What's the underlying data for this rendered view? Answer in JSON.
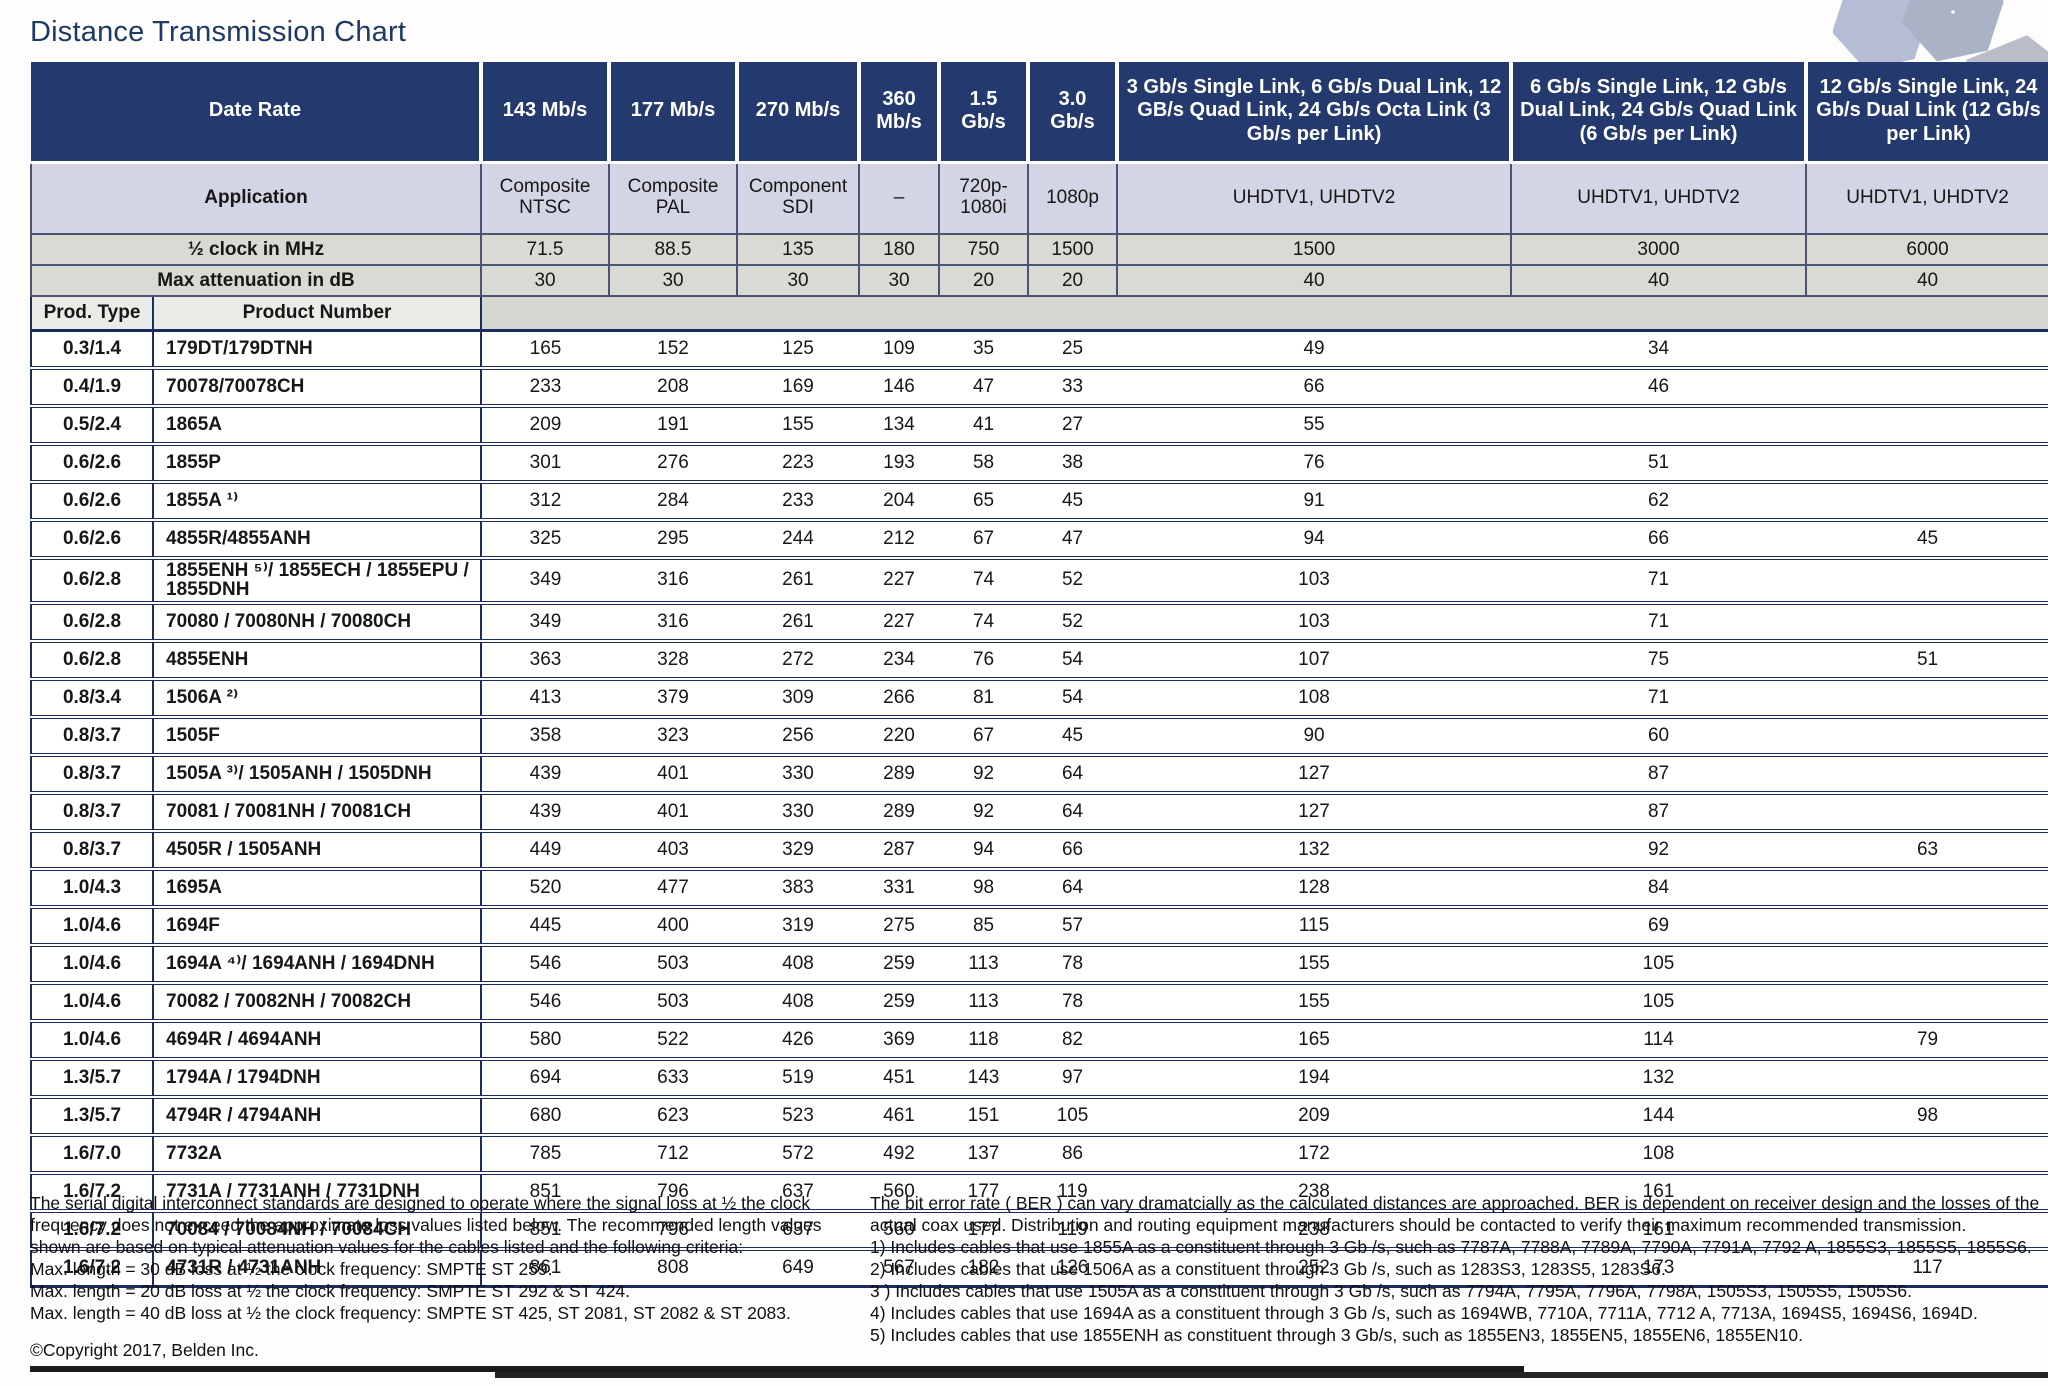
{
  "page": {
    "title": "Distance Transmission Chart"
  },
  "colors": {
    "header_navy": "#243a6e",
    "application_row_bg": "#d3d5e4",
    "spec_row_bg": "#d9dad3",
    "row_separator_navy": "#1d2c5e",
    "title_blue": "#1e3966",
    "hexagon_fill": "#b5bdd4"
  },
  "icons": {
    "decoration": "hexagon-pattern"
  },
  "table": {
    "data_rate_label": "Date Rate",
    "application_label": "Application",
    "half_clock_label": "½ clock in MHz",
    "max_atten_label": "Max attenuation in dB",
    "prod_type_label": "Prod. Type",
    "product_number_label": "Product Number",
    "columns": [
      {
        "data_rate": "143 Mb/s",
        "application": "Composite NTSC",
        "half_clock_mhz": "71.5",
        "max_attenuation_db": "30"
      },
      {
        "data_rate": "177 Mb/s",
        "application": "Composite PAL",
        "half_clock_mhz": "88.5",
        "max_attenuation_db": "30"
      },
      {
        "data_rate": "270 Mb/s",
        "application": "Component SDI",
        "half_clock_mhz": "135",
        "max_attenuation_db": "30"
      },
      {
        "data_rate": "360 Mb/s",
        "application": "–",
        "half_clock_mhz": "180",
        "max_attenuation_db": "30"
      },
      {
        "data_rate": "1.5 Gb/s",
        "application": "720p- 1080i",
        "half_clock_mhz": "750",
        "max_attenuation_db": "20"
      },
      {
        "data_rate": "3.0 Gb/s",
        "application": "1080p",
        "half_clock_mhz": "1500",
        "max_attenuation_db": "20"
      },
      {
        "data_rate": "3 Gb/s Single Link, 6 Gb/s Dual Link, 12 GB/s Quad Link, 24 Gb/s Octa Link (3 Gb/s per Link)",
        "application": "UHDTV1, UHDTV2",
        "half_clock_mhz": "1500",
        "max_attenuation_db": "40"
      },
      {
        "data_rate": "6 Gb/s Single Link, 12 Gb/s Dual Link, 24 Gb/s Quad Link (6 Gb/s per Link)",
        "application": "UHDTV1, UHDTV2",
        "half_clock_mhz": "3000",
        "max_attenuation_db": "40"
      },
      {
        "data_rate": "12 Gb/s Single Link, 24 Gb/s Dual Link (12 Gb/s per Link)",
        "application": "UHDTV1, UHDTV2",
        "half_clock_mhz": "6000",
        "max_attenuation_db": "40"
      }
    ],
    "rows": [
      {
        "prod_type": "0.3/1.4",
        "product_number": "179DT/179DTNH",
        "values": [
          "165",
          "152",
          "125",
          "109",
          "35",
          "25",
          "49",
          "34",
          ""
        ]
      },
      {
        "prod_type": "0.4/1.9",
        "product_number": "70078/70078CH",
        "values": [
          "233",
          "208",
          "169",
          "146",
          "47",
          "33",
          "66",
          "46",
          ""
        ]
      },
      {
        "prod_type": "0.5/2.4",
        "product_number": "1865A",
        "values": [
          "209",
          "191",
          "155",
          "134",
          "41",
          "27",
          "55",
          "",
          ""
        ]
      },
      {
        "prod_type": "0.6/2.6",
        "product_number": "1855P",
        "values": [
          "301",
          "276",
          "223",
          "193",
          "58",
          "38",
          "76",
          "51",
          ""
        ]
      },
      {
        "prod_type": "0.6/2.6",
        "product_number": "1855A ¹⁾",
        "values": [
          "312",
          "284",
          "233",
          "204",
          "65",
          "45",
          "91",
          "62",
          ""
        ]
      },
      {
        "prod_type": "0.6/2.6",
        "product_number": "4855R/4855ANH",
        "values": [
          "325",
          "295",
          "244",
          "212",
          "67",
          "47",
          "94",
          "66",
          "45"
        ]
      },
      {
        "prod_type": "0.6/2.8",
        "product_number": "1855ENH ⁵⁾/ 1855ECH / 1855EPU / 1855DNH",
        "values": [
          "349",
          "316",
          "261",
          "227",
          "74",
          "52",
          "103",
          "71",
          ""
        ]
      },
      {
        "prod_type": "0.6/2.8",
        "product_number": "70080 / 70080NH / 70080CH",
        "values": [
          "349",
          "316",
          "261",
          "227",
          "74",
          "52",
          "103",
          "71",
          ""
        ]
      },
      {
        "prod_type": "0.6/2.8",
        "product_number": "4855ENH",
        "values": [
          "363",
          "328",
          "272",
          "234",
          "76",
          "54",
          "107",
          "75",
          "51"
        ]
      },
      {
        "prod_type": "0.8/3.4",
        "product_number": "1506A ²⁾",
        "values": [
          "413",
          "379",
          "309",
          "266",
          "81",
          "54",
          "108",
          "71",
          ""
        ]
      },
      {
        "prod_type": "0.8/3.7",
        "product_number": "1505F",
        "values": [
          "358",
          "323",
          "256",
          "220",
          "67",
          "45",
          "90",
          "60",
          ""
        ]
      },
      {
        "prod_type": "0.8/3.7",
        "product_number": "1505A ³⁾/ 1505ANH / 1505DNH",
        "values": [
          "439",
          "401",
          "330",
          "289",
          "92",
          "64",
          "127",
          "87",
          ""
        ]
      },
      {
        "prod_type": "0.8/3.7",
        "product_number": "70081 / 70081NH / 70081CH",
        "values": [
          "439",
          "401",
          "330",
          "289",
          "92",
          "64",
          "127",
          "87",
          ""
        ]
      },
      {
        "prod_type": "0.8/3.7",
        "product_number": "4505R / 1505ANH",
        "values": [
          "449",
          "403",
          "329",
          "287",
          "94",
          "66",
          "132",
          "92",
          "63"
        ]
      },
      {
        "prod_type": "1.0/4.3",
        "product_number": "1695A",
        "values": [
          "520",
          "477",
          "383",
          "331",
          "98",
          "64",
          "128",
          "84",
          ""
        ]
      },
      {
        "prod_type": "1.0/4.6",
        "product_number": "1694F",
        "values": [
          "445",
          "400",
          "319",
          "275",
          "85",
          "57",
          "115",
          "69",
          ""
        ]
      },
      {
        "prod_type": "1.0/4.6",
        "product_number": "1694A ⁴⁾/ 1694ANH / 1694DNH",
        "values": [
          "546",
          "503",
          "408",
          "259",
          "113",
          "78",
          "155",
          "105",
          ""
        ]
      },
      {
        "prod_type": "1.0/4.6",
        "product_number": "70082 / 70082NH / 70082CH",
        "values": [
          "546",
          "503",
          "408",
          "259",
          "113",
          "78",
          "155",
          "105",
          ""
        ]
      },
      {
        "prod_type": "1.0/4.6",
        "product_number": "4694R / 4694ANH",
        "values": [
          "580",
          "522",
          "426",
          "369",
          "118",
          "82",
          "165",
          "114",
          "79"
        ]
      },
      {
        "prod_type": "1.3/5.7",
        "product_number": "1794A / 1794DNH",
        "values": [
          "694",
          "633",
          "519",
          "451",
          "143",
          "97",
          "194",
          "132",
          ""
        ]
      },
      {
        "prod_type": "1.3/5.7",
        "product_number": "4794R / 4794ANH",
        "values": [
          "680",
          "623",
          "523",
          "461",
          "151",
          "105",
          "209",
          "144",
          "98"
        ]
      },
      {
        "prod_type": "1.6/7.0",
        "product_number": "7732A",
        "values": [
          "785",
          "712",
          "572",
          "492",
          "137",
          "86",
          "172",
          "108",
          ""
        ]
      },
      {
        "prod_type": "1.6/7.2",
        "product_number": "7731A / 7731ANH / 7731DNH",
        "values": [
          "851",
          "796",
          "637",
          "560",
          "177",
          "119",
          "238",
          "161",
          ""
        ]
      },
      {
        "prod_type": "1.6/7.2",
        "product_number": "70084 / 70084NH / 70084CH",
        "values": [
          "851",
          "796",
          "637",
          "560",
          "177",
          "119",
          "238",
          "161",
          ""
        ]
      },
      {
        "prod_type": "1.6/7.2",
        "product_number": "4731R / 4731ANH",
        "values": [
          "861",
          "808",
          "649",
          "567",
          "182",
          "126",
          "252",
          "173",
          "117"
        ]
      }
    ]
  },
  "footnotes": {
    "left_intro": "The serial digital interconnect standards are designed to operate where the signal loss at ½ the clock frequency does not exceed the approximate loss values listed below. The recommended length values shown are based on typical attenuation values for the cables listed and the following criteria:",
    "criteria": [
      "Max. length = 30 dB loss at ½ the clock frequency: SMPTE ST 259.",
      "Max. length = 20 dB loss at ½ the clock frequency: SMPTE ST 292 & ST 424.",
      "Max. length = 40 dB loss at ½ the clock frequency: SMPTE ST 425, ST 2081, ST 2082 & ST 2083."
    ],
    "copyright": "©Copyright 2017, Belden Inc.",
    "right_intro": "The bit error rate ( BER ) can vary dramatcially as the calculated distances are approached. BER is dependent on receiver design and the losses of the actual coax used. Distribution and routing equipment manufacturers should be contacted to verify their maximum recommended transmission.",
    "numbered": [
      "1) Includes cables that use 1855A as a constituent through 3 Gb /s, such as 7787A, 7788A, 7789A, 7790A, 7791A, 7792 A, 1855S3, 1855S5, 1855S6.",
      "2) Includes cables that use 1506A as a constituent through 3 Gb /s, such as 1283S3, 1283S5, 1283S6.",
      "3 ) Includes cables that use 1505A as a constituent through 3 Gb /s, such as 7794A, 7795A, 7796A, 7798A, 1505S3, 1505S5, 1505S6.",
      "4) Includes cables that use 1694A as a constituent through 3 Gb /s, such as 1694WB, 7710A, 7711A, 7712 A, 7713A, 1694S5, 1694S6, 1694D.",
      "5) Includes cables that use 1855ENH as constituent through 3 Gb/s, such as 1855EN3, 1855EN5, 1855EN6, 1855EN10."
    ]
  }
}
